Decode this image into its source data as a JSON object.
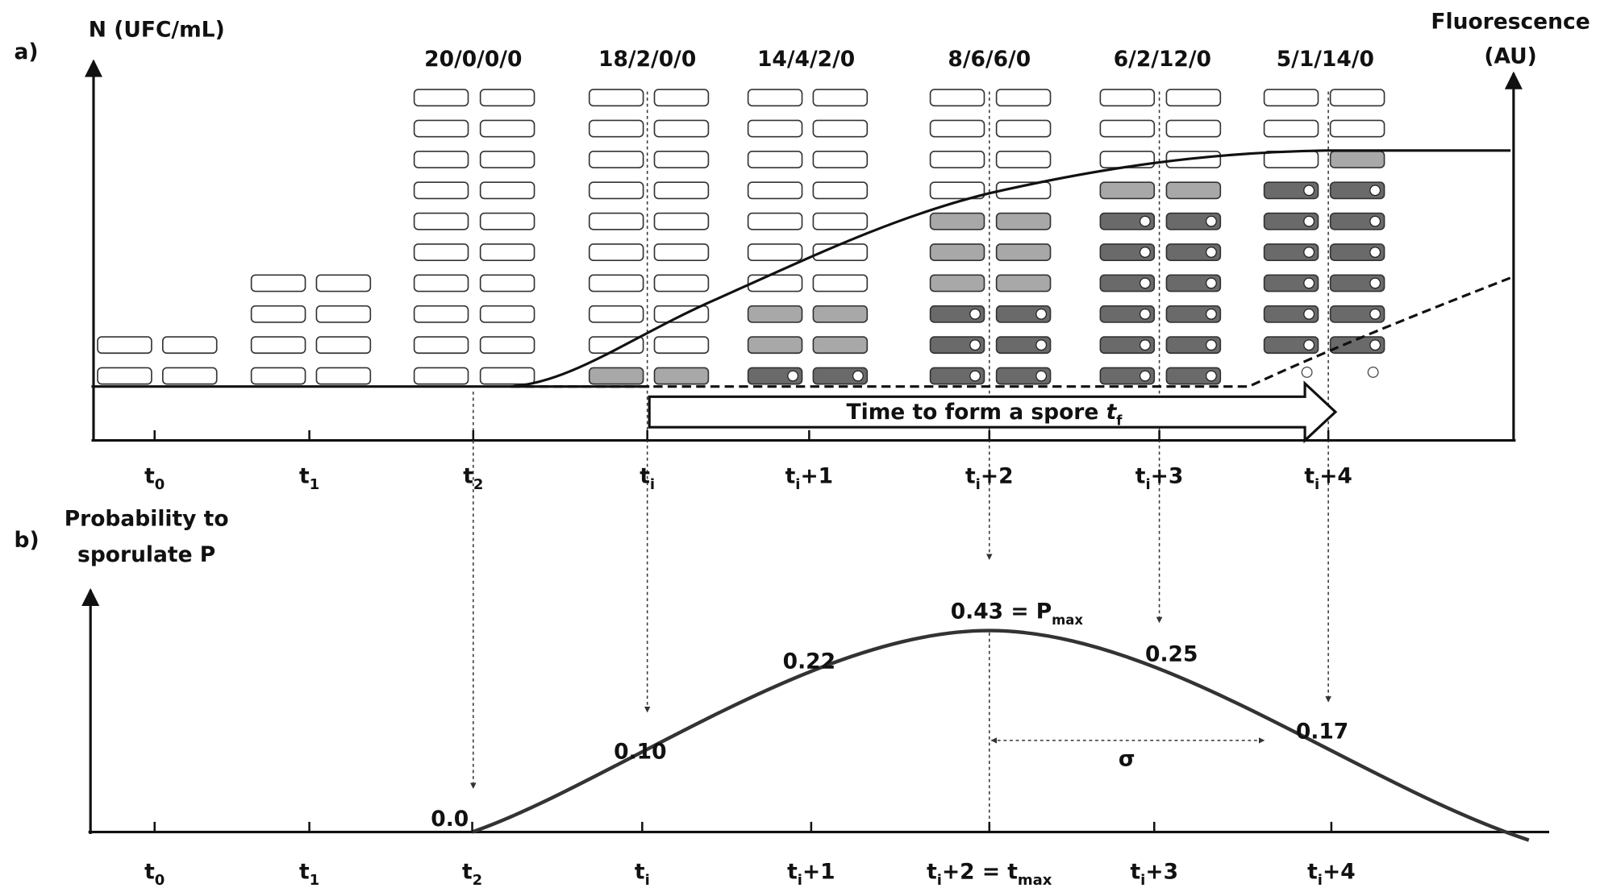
{
  "panel_a": {
    "label": "a)",
    "y_axis_label": "N (UFC/mL)",
    "y2_axis_label": [
      "Fluorescence",
      "(AU)"
    ],
    "counts": [
      "20/0/0/0",
      "18/2/0/0",
      "14/4/2/0",
      "8/6/6/0",
      "6/2/12/0",
      "5/1/14/0"
    ],
    "arrow_label": [
      {
        "text": "Time to form a spore "
      },
      {
        "italic": "t"
      },
      {
        "sub": "f"
      }
    ],
    "time_labels": [
      [
        {
          "text": "t"
        },
        {
          "sub": "0"
        }
      ],
      [
        {
          "text": "t"
        },
        {
          "sub": "1"
        }
      ],
      [
        {
          "text": "t"
        },
        {
          "sub": "2"
        }
      ],
      [
        {
          "text": "t"
        },
        {
          "sub": "i"
        }
      ],
      [
        {
          "text": "t"
        },
        {
          "sub": "i"
        },
        {
          "text": "+1"
        }
      ],
      [
        {
          "text": "t"
        },
        {
          "sub": "i"
        },
        {
          "text": "+2"
        }
      ],
      [
        {
          "text": "t"
        },
        {
          "sub": "i"
        },
        {
          "text": "+3"
        }
      ],
      [
        {
          "text": "t"
        },
        {
          "sub": "i"
        },
        {
          "text": "+4"
        }
      ]
    ]
  },
  "panel_b": {
    "label": "b)",
    "y_axis_label": [
      "Probability to",
      "sporulate P"
    ],
    "probability_labels": [
      [
        {
          "text": "0.0"
        }
      ],
      [
        {
          "text": "0.10"
        }
      ],
      [
        {
          "text": "0.22"
        }
      ],
      [
        {
          "text": "0.43 = P"
        },
        {
          "sub": "max"
        }
      ],
      [
        {
          "text": "0.25"
        }
      ],
      [
        {
          "text": "0.17"
        }
      ]
    ],
    "sigma": "σ",
    "time_labels": [
      [
        {
          "text": "t"
        },
        {
          "sub": "0"
        }
      ],
      [
        {
          "text": "t"
        },
        {
          "sub": "1"
        }
      ],
      [
        {
          "text": "t"
        },
        {
          "sub": "2"
        }
      ],
      [
        {
          "text": "t"
        },
        {
          "sub": "i"
        }
      ],
      [
        {
          "text": "t"
        },
        {
          "sub": "i"
        },
        {
          "text": "+1"
        }
      ],
      [
        {
          "text": "t"
        },
        {
          "sub": "i"
        },
        {
          "text": "+2 = t"
        },
        {
          "sub": "max"
        }
      ],
      [
        {
          "text": "t"
        },
        {
          "sub": "i"
        },
        {
          "text": "+3"
        }
      ],
      [
        {
          "text": "t"
        },
        {
          "sub": "i"
        },
        {
          "text": "+4"
        }
      ]
    ]
  }
}
